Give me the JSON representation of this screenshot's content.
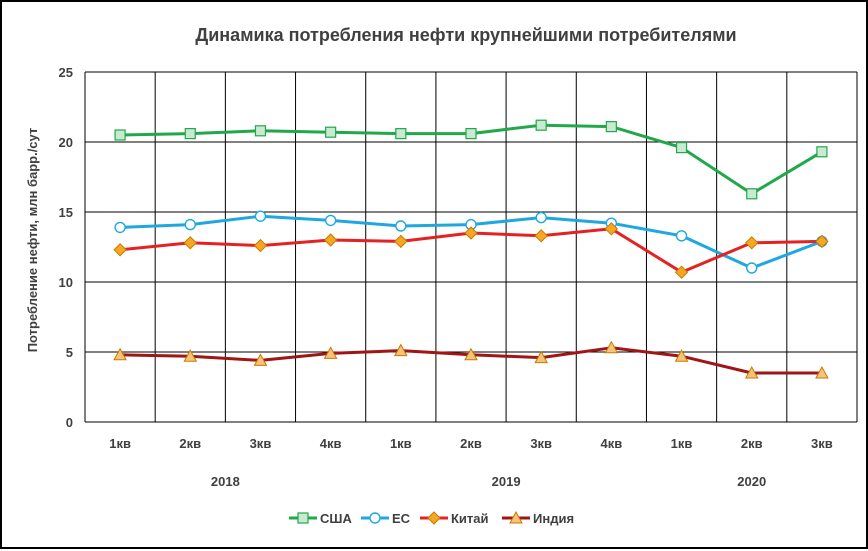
{
  "chart_data": {
    "type": "line",
    "title": "Динамика потребления нефти крупнейшими потребителями",
    "ylabel": "Потребление нефти, млн барр./сут",
    "xlabel": "",
    "ylim": [
      0,
      25
    ],
    "yticks": [
      0,
      5,
      10,
      15,
      20,
      25
    ],
    "grid": true,
    "legend_position": "bottom",
    "categories": [
      "1кв",
      "2кв",
      "3кв",
      "4кв",
      "1кв",
      "2кв",
      "3кв",
      "4кв",
      "1кв",
      "2кв",
      "3кв"
    ],
    "years": [
      {
        "label": "2018",
        "span": [
          0,
          3
        ]
      },
      {
        "label": "2019",
        "span": [
          4,
          7
        ]
      },
      {
        "label": "2020",
        "span": [
          8,
          10
        ]
      }
    ],
    "series": [
      {
        "name": "США",
        "color": "#22a84a",
        "marker": "square",
        "values": [
          20.5,
          20.6,
          20.8,
          20.7,
          20.6,
          20.6,
          21.2,
          21.1,
          19.6,
          16.3,
          19.3
        ]
      },
      {
        "name": "ЕС",
        "color": "#1fa8e0",
        "marker": "circle",
        "values": [
          13.9,
          14.1,
          14.7,
          14.4,
          14.0,
          14.1,
          14.6,
          14.2,
          13.3,
          11.0,
          12.9
        ]
      },
      {
        "name": "Китай",
        "color": "#e52222",
        "marker": "diamond",
        "values": [
          12.3,
          12.8,
          12.6,
          13.0,
          12.9,
          13.5,
          13.3,
          13.8,
          10.7,
          12.8,
          12.9
        ]
      },
      {
        "name": "Индия",
        "color": "#a01515",
        "marker": "triangle",
        "values": [
          4.8,
          4.7,
          4.4,
          4.9,
          5.1,
          4.8,
          4.6,
          5.3,
          4.7,
          3.5,
          3.5
        ]
      }
    ]
  }
}
